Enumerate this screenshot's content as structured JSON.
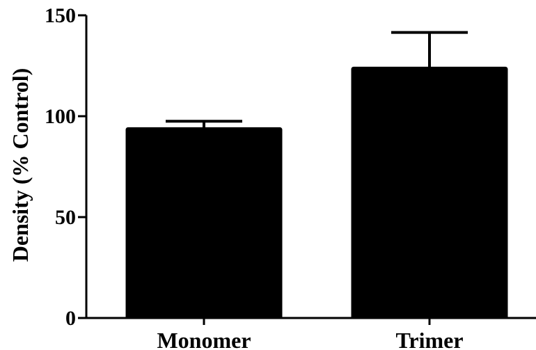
{
  "chart_data": {
    "type": "bar",
    "categories": [
      "Monomer",
      "Trimer"
    ],
    "values": [
      94,
      124
    ],
    "errors": [
      3.5,
      17.5
    ],
    "ylabel": "Density (% Control)",
    "xlabel": "",
    "ylim": [
      0,
      150
    ],
    "yticks": [
      0,
      50,
      100,
      150
    ],
    "grid": false,
    "bar_color": "#000000"
  }
}
